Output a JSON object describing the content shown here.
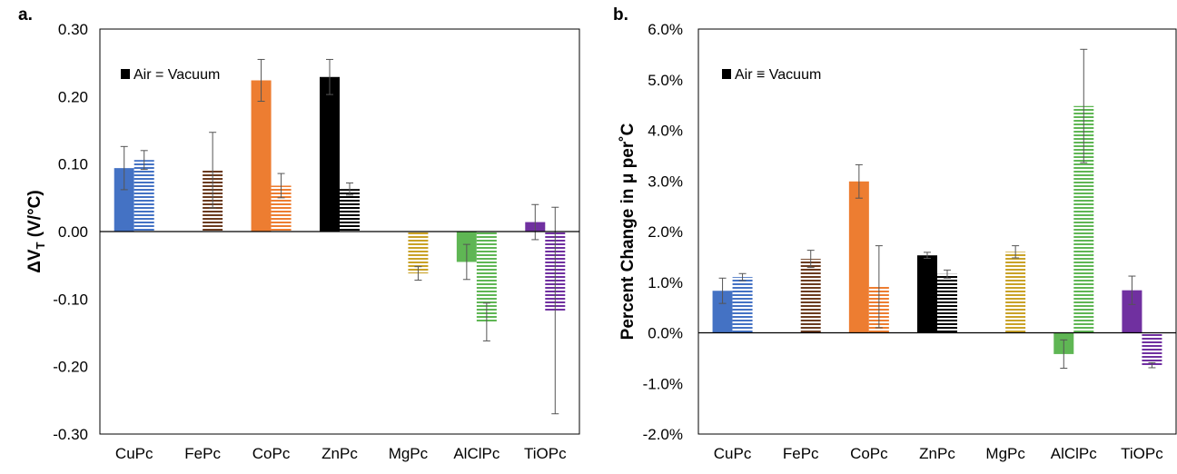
{
  "chart_data": [
    {
      "type": "bar",
      "panel_label": "a.",
      "ylabel_main": "ΔV",
      "ylabel_sub": "T",
      "ylabel_rest": " (V/°C)",
      "ylim": [
        -0.3,
        0.3
      ],
      "yticks": [
        "0.30",
        "0.20",
        "0.10",
        "0.00",
        "-0.10",
        "-0.20",
        "-0.30"
      ],
      "categories": [
        "CuPc",
        "FePc",
        "CoPc",
        "ZnPc",
        "MgPc",
        "AlClPc",
        "TiOPc"
      ],
      "legend_text": "Air = Vacuum",
      "legend_position": "top-left",
      "series": [
        {
          "condition": "air",
          "values": [
            0.094,
            null,
            0.224,
            0.229,
            null,
            -0.045,
            0.014
          ],
          "errors": [
            0.032,
            null,
            0.031,
            0.026,
            null,
            0.026,
            0.026
          ]
        },
        {
          "condition": "vacuum",
          "values": [
            0.106,
            0.091,
            0.068,
            0.063,
            -0.062,
            -0.134,
            -0.117
          ],
          "errors": [
            0.014,
            0.056,
            0.018,
            0.009,
            0.01,
            0.028,
            0.153
          ]
        }
      ]
    },
    {
      "type": "bar",
      "panel_label": "b.",
      "ylabel": "Percent Change in μ per˚C",
      "ylim": [
        -2.0,
        6.0
      ],
      "yticks": [
        "6.0%",
        "5.0%",
        "4.0%",
        "3.0%",
        "2.0%",
        "1.0%",
        "0.0%",
        "-1.0%",
        "-2.0%"
      ],
      "categories": [
        "CuPc",
        "FePc",
        "CoPc",
        "ZnPc",
        "MgPc",
        "AlClPc",
        "TiOPc"
      ],
      "legend_text": "Air ≡ Vacuum",
      "legend_position": "top-left",
      "series": [
        {
          "condition": "air",
          "values": [
            0.83,
            null,
            2.99,
            1.53,
            null,
            -0.42,
            0.84
          ],
          "errors": [
            0.25,
            null,
            0.33,
            0.06,
            null,
            0.28,
            0.28
          ]
        },
        {
          "condition": "vacuum",
          "values": [
            1.1,
            1.46,
            0.91,
            1.16,
            1.6,
            4.48,
            -0.64
          ],
          "errors": [
            0.07,
            0.17,
            0.81,
            0.08,
            0.12,
            1.12,
            0.05
          ]
        }
      ]
    }
  ],
  "colors": {
    "CuPc": "#4472c4",
    "FePc": "#6b3b1f",
    "CoPc": "#ed7d31",
    "ZnPc": "#000000",
    "MgPc": "#c9a227",
    "AlClPc": "#5fb654",
    "TiOPc": "#7030a0"
  }
}
